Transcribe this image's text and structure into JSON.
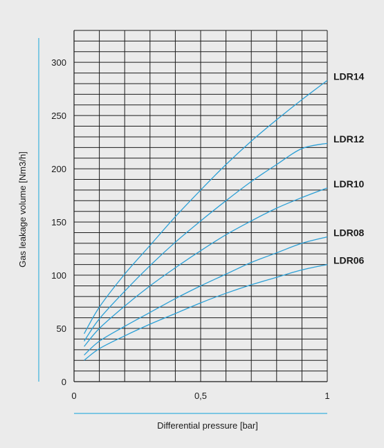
{
  "chart_data": {
    "type": "line",
    "xlabel": "Differential pressure  [bar]",
    "ylabel": "Gas leakage volume [Nm3/h]",
    "xlim": [
      0,
      1
    ],
    "ylim": [
      0,
      330
    ],
    "x_ticks": [
      {
        "value": 0,
        "label": "0"
      },
      {
        "value": 0.5,
        "label": "0,5"
      },
      {
        "value": 1,
        "label": "1"
      }
    ],
    "y_ticks": [
      {
        "value": 0,
        "label": "0"
      },
      {
        "value": 50,
        "label": "50"
      },
      {
        "value": 100,
        "label": "100"
      },
      {
        "value": 150,
        "label": "150"
      },
      {
        "value": 200,
        "label": "200"
      },
      {
        "value": 250,
        "label": "250"
      },
      {
        "value": 300,
        "label": "300"
      }
    ],
    "grid": {
      "x_step": 0.1,
      "y_step": 10
    },
    "series": [
      {
        "name": "LDR14",
        "x": [
          0.04,
          0.1,
          0.2,
          0.3,
          0.4,
          0.5,
          0.6,
          0.7,
          0.8,
          0.9,
          1.0
        ],
        "values": [
          45,
          70,
          101,
          128,
          155,
          180,
          204,
          226,
          246,
          265,
          283
        ]
      },
      {
        "name": "LDR12",
        "x": [
          0.04,
          0.1,
          0.2,
          0.3,
          0.4,
          0.5,
          0.6,
          0.7,
          0.8,
          0.9,
          1.0
        ],
        "values": [
          38,
          59,
          85,
          109,
          131,
          151,
          170,
          188,
          204,
          219,
          224
        ]
      },
      {
        "name": "LDR10",
        "x": [
          0.04,
          0.1,
          0.2,
          0.3,
          0.4,
          0.5,
          0.6,
          0.7,
          0.8,
          0.9,
          1.0
        ],
        "values": [
          33,
          50,
          71,
          90,
          107,
          123,
          138,
          151,
          163,
          173,
          182
        ]
      },
      {
        "name": "LDR08",
        "x": [
          0.04,
          0.1,
          0.2,
          0.3,
          0.4,
          0.5,
          0.6,
          0.7,
          0.8,
          0.9,
          1.0
        ],
        "values": [
          25,
          38,
          52,
          65,
          78,
          90,
          101,
          112,
          121,
          130,
          136
        ]
      },
      {
        "name": "LDR06",
        "x": [
          0.04,
          0.1,
          0.2,
          0.3,
          0.4,
          0.5,
          0.6,
          0.7,
          0.8,
          0.9,
          1.0
        ],
        "values": [
          20,
          31,
          43,
          54,
          64,
          74,
          83,
          91,
          98,
          105,
          110
        ]
      }
    ],
    "colors": {
      "curve": "#2a9fd6",
      "accent": "#3ab0dc",
      "grid": "#1a1a1a",
      "text": "#1a1a1a"
    }
  }
}
